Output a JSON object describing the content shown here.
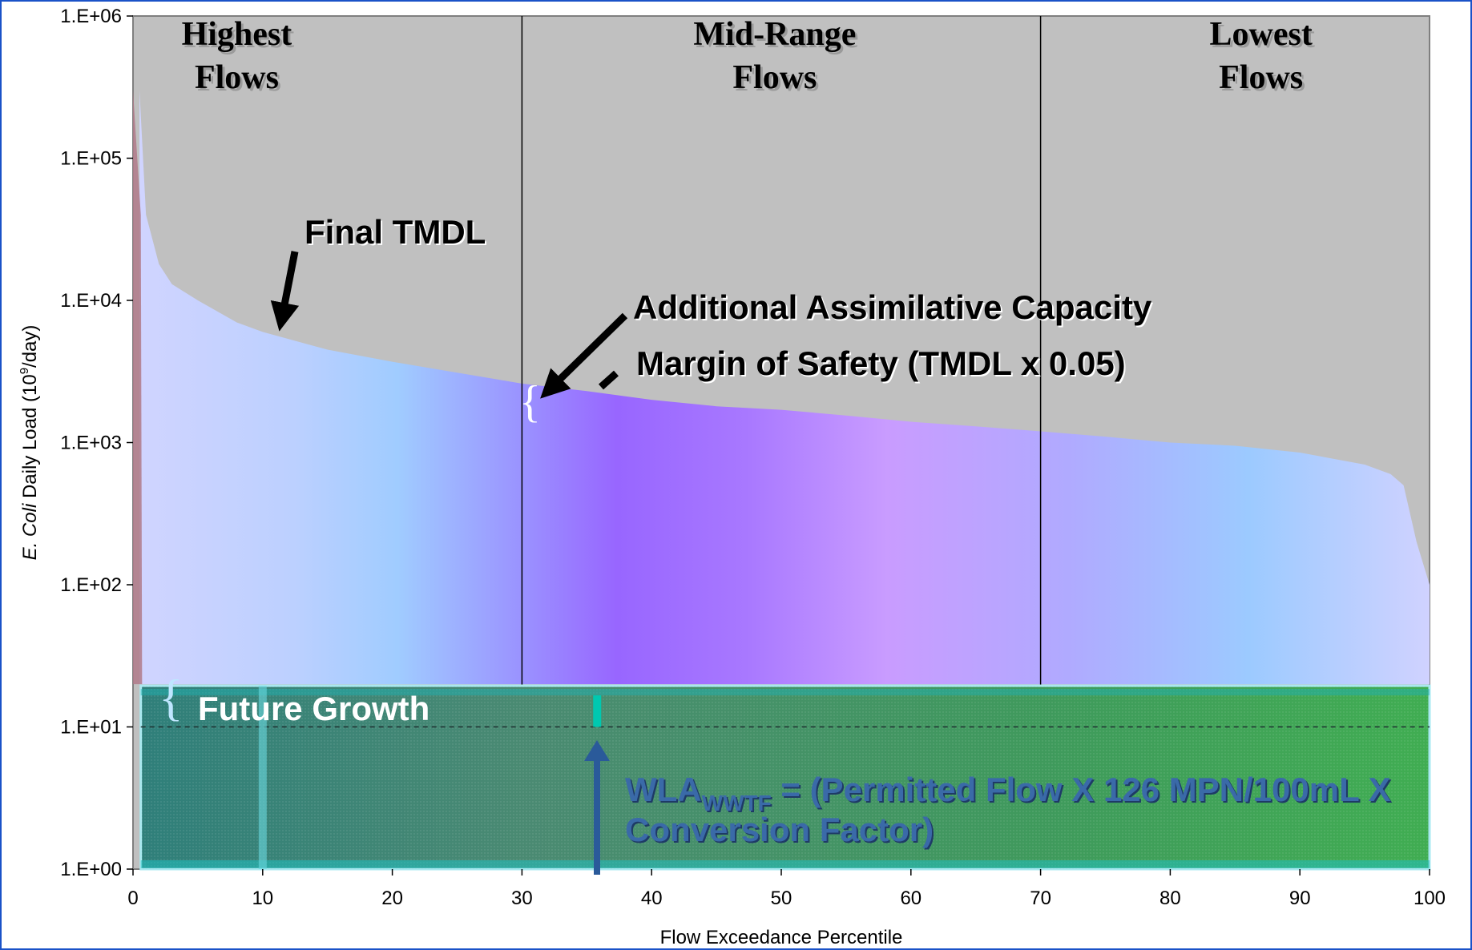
{
  "chart_data": {
    "type": "area",
    "x_axis": {
      "label": "Flow Exceedance Percentile",
      "range": [
        0,
        100
      ],
      "ticks": [
        "0",
        "10",
        "20",
        "30",
        "40",
        "50",
        "60",
        "70",
        "80",
        "90",
        "100"
      ]
    },
    "y_axis": {
      "label_italic": "E. Coli",
      "label_rest": " Daily Load (10",
      "label_sup": "9",
      "label_end": "/day)",
      "scale": "log",
      "range": [
        1,
        1000000
      ],
      "ticks": [
        "1.E+00",
        "1.E+01",
        "1.E+02",
        "1.E+03",
        "1.E+04",
        "1.E+05",
        "1.E+06"
      ]
    },
    "regions": [
      {
        "line1": "Highest",
        "line2": "Flows",
        "x_center": 8
      },
      {
        "line1": "Mid-Range",
        "line2": "Flows",
        "x_center": 49.5
      },
      {
        "line1": "Lowest",
        "line2": "Flows",
        "x_center": 87
      }
    ],
    "region_boundaries": [
      30,
      70
    ],
    "series": [
      {
        "name": "Final TMDL",
        "x": [
          0.5,
          1,
          2,
          3,
          5,
          8,
          10,
          15,
          20,
          25,
          30,
          35,
          40,
          45,
          50,
          55,
          60,
          65,
          70,
          75,
          80,
          85,
          90,
          95,
          97,
          98,
          99,
          100
        ],
        "y": [
          300000,
          40000,
          18000,
          13000,
          10000,
          7000,
          6000,
          4500,
          3700,
          3100,
          2600,
          2300,
          2000,
          1800,
          1700,
          1550,
          1400,
          1300,
          1200,
          1100,
          1000,
          950,
          850,
          700,
          600,
          500,
          200,
          100
        ]
      },
      {
        "name": "Future Growth",
        "y": 20
      },
      {
        "name": "WLA",
        "y": 10
      }
    ],
    "annotations": {
      "final_tmdl": "Final TMDL",
      "additional_capacity": "Additional Assimilative Capacity",
      "margin_of_safety": "Margin of Safety (TMDL x 0.05)",
      "future_growth": "Future Growth",
      "wla_prefix": "WLA",
      "wla_subscript": "WWTF",
      "wla_rest": " = (Permitted Flow X 126 MPN/100mL X",
      "wla_line2": "Conversion Factor)"
    },
    "colors": {
      "frame": "#1a52c8",
      "background": "#c0c0c0",
      "growth_band": "#3aa058",
      "wla_arrow": "#2a5a9a"
    }
  }
}
